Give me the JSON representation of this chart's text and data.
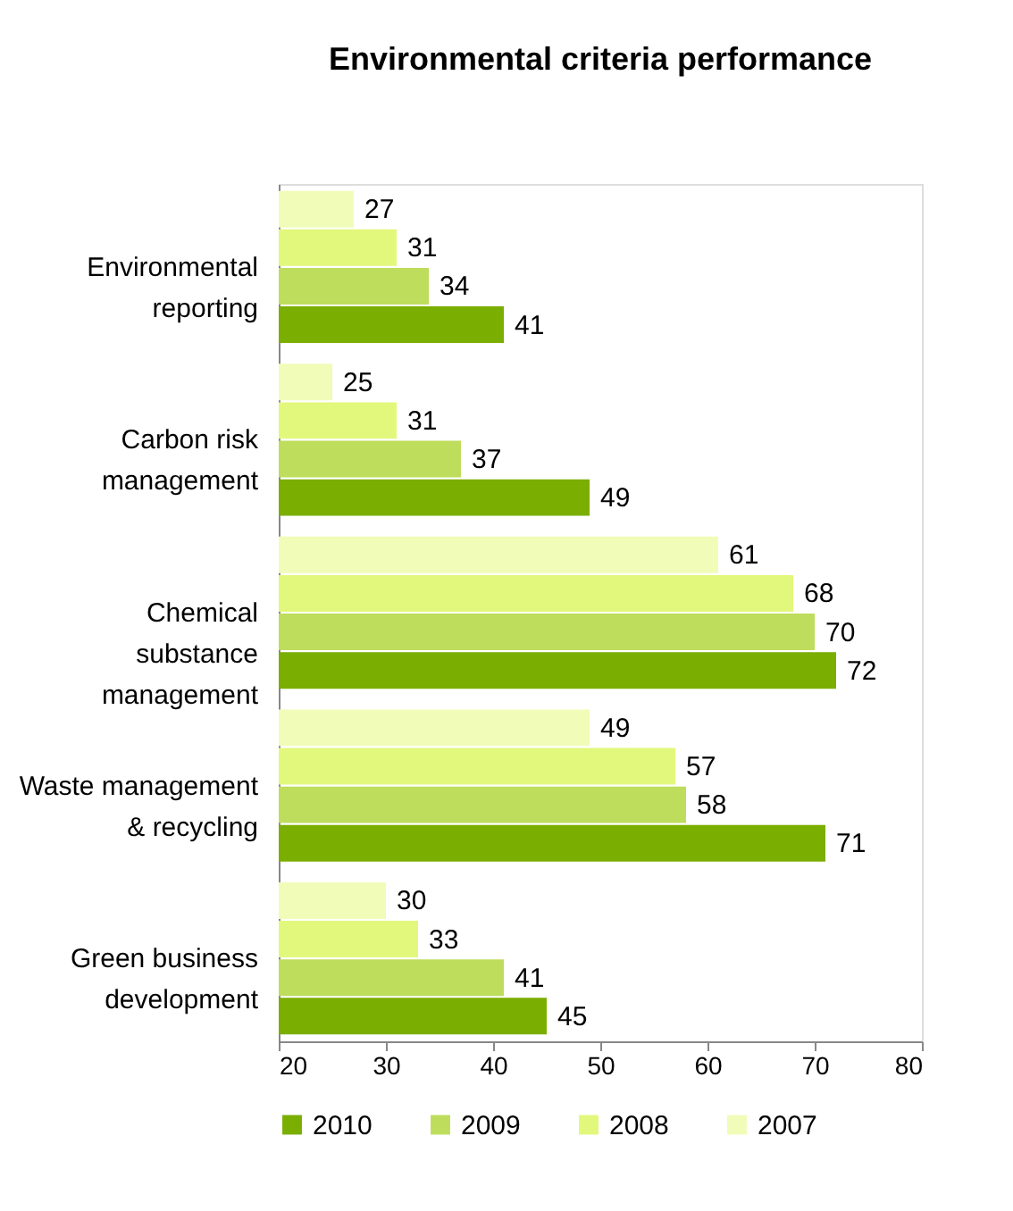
{
  "chart_data": {
    "type": "bar",
    "orientation": "horizontal",
    "title": "Environmental criteria performance",
    "categories": [
      "Environmental reporting",
      "Carbon risk management",
      "Chemical substance management",
      "Waste management & recycling",
      "Green business development"
    ],
    "series": [
      {
        "name": "2010",
        "color": "#7aae00",
        "values": [
          41,
          49,
          72,
          71,
          45
        ]
      },
      {
        "name": "2009",
        "color": "#bedd5c",
        "values": [
          34,
          37,
          70,
          58,
          41
        ]
      },
      {
        "name": "2008",
        "color": "#e2f87c",
        "values": [
          31,
          31,
          68,
          57,
          33
        ]
      },
      {
        "name": "2007",
        "color": "#f0fcb8",
        "values": [
          27,
          25,
          61,
          49,
          30
        ]
      }
    ],
    "xlim": [
      20,
      80
    ],
    "xticks": [
      20,
      30,
      40,
      50,
      60,
      70,
      80
    ],
    "data_labels": true,
    "legend": "bottom",
    "grid": false
  }
}
